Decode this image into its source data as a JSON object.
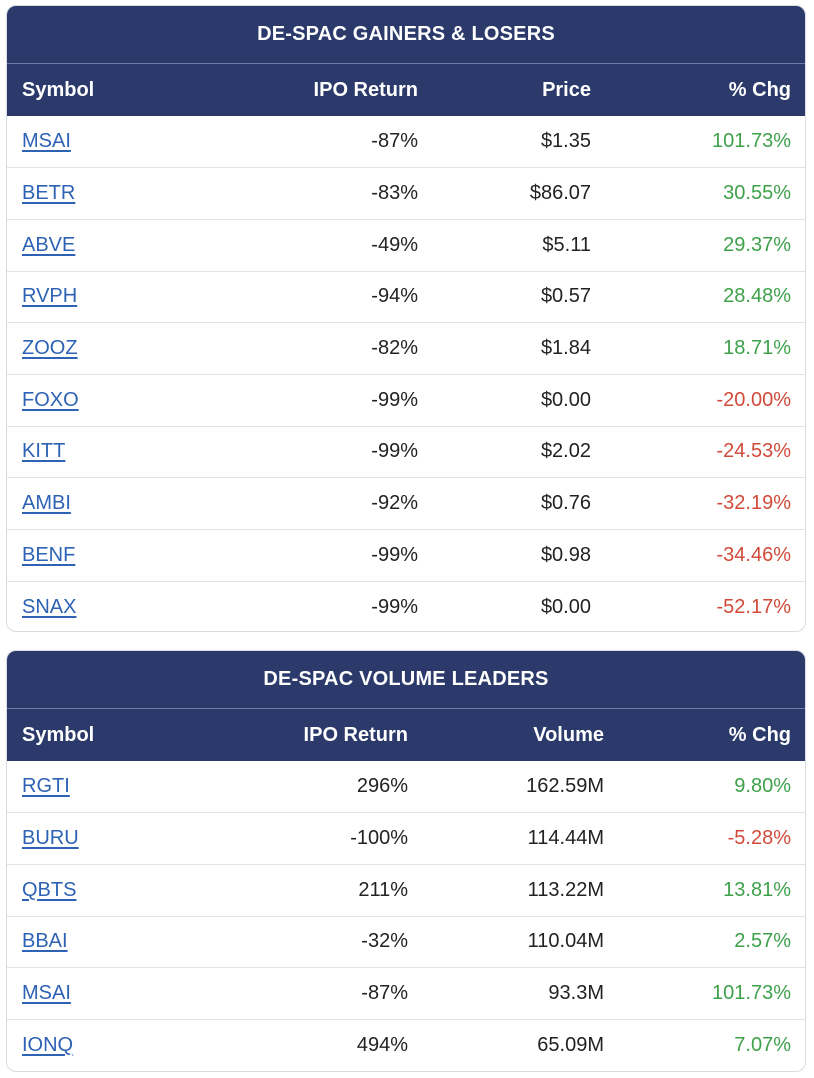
{
  "gainers_losers": {
    "title": "DE-SPAC GAINERS & LOSERS",
    "columns": [
      "Symbol",
      "IPO Return",
      "Price",
      "% Chg"
    ],
    "rows": [
      {
        "symbol": "MSAI",
        "ipo_return": "-87%",
        "price": "$1.35",
        "chg": "101.73%",
        "trend": "pos"
      },
      {
        "symbol": "BETR",
        "ipo_return": "-83%",
        "price": "$86.07",
        "chg": "30.55%",
        "trend": "pos"
      },
      {
        "symbol": "ABVE",
        "ipo_return": "-49%",
        "price": "$5.11",
        "chg": "29.37%",
        "trend": "pos"
      },
      {
        "symbol": "RVPH",
        "ipo_return": "-94%",
        "price": "$0.57",
        "chg": "28.48%",
        "trend": "pos"
      },
      {
        "symbol": "ZOOZ",
        "ipo_return": "-82%",
        "price": "$1.84",
        "chg": "18.71%",
        "trend": "pos"
      },
      {
        "symbol": "FOXO",
        "ipo_return": "-99%",
        "price": "$0.00",
        "chg": "-20.00%",
        "trend": "neg"
      },
      {
        "symbol": "KITT",
        "ipo_return": "-99%",
        "price": "$2.02",
        "chg": "-24.53%",
        "trend": "neg"
      },
      {
        "symbol": "AMBI",
        "ipo_return": "-92%",
        "price": "$0.76",
        "chg": "-32.19%",
        "trend": "neg"
      },
      {
        "symbol": "BENF",
        "ipo_return": "-99%",
        "price": "$0.98",
        "chg": "-34.46%",
        "trend": "neg"
      },
      {
        "symbol": "SNAX",
        "ipo_return": "-99%",
        "price": "$0.00",
        "chg": "-52.17%",
        "trend": "neg"
      }
    ]
  },
  "volume_leaders": {
    "title": "DE-SPAC VOLUME LEADERS",
    "columns": [
      "Symbol",
      "IPO Return",
      "Volume",
      "% Chg"
    ],
    "rows": [
      {
        "symbol": "RGTI",
        "ipo_return": "296%",
        "volume": "162.59M",
        "chg": "9.80%",
        "trend": "pos"
      },
      {
        "symbol": "BURU",
        "ipo_return": "-100%",
        "volume": "114.44M",
        "chg": "-5.28%",
        "trend": "neg"
      },
      {
        "symbol": "QBTS",
        "ipo_return": "211%",
        "volume": "113.22M",
        "chg": "13.81%",
        "trend": "pos"
      },
      {
        "symbol": "BBAI",
        "ipo_return": "-32%",
        "volume": "110.04M",
        "chg": "2.57%",
        "trend": "pos"
      },
      {
        "symbol": "MSAI",
        "ipo_return": "-87%",
        "volume": "93.3M",
        "chg": "101.73%",
        "trend": "pos"
      },
      {
        "symbol": "IONQ",
        "ipo_return": "494%",
        "volume": "65.09M",
        "chg": "7.07%",
        "trend": "pos"
      }
    ]
  },
  "colors": {
    "header_bg": "#2b3a6a",
    "link": "#2e62b5",
    "positive": "#3ea14a",
    "negative": "#d14a3a"
  }
}
